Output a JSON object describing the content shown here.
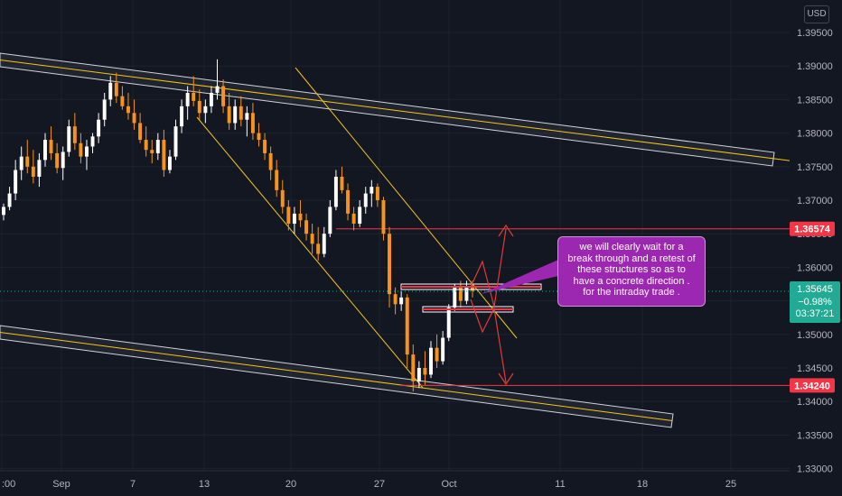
{
  "currency": "USD",
  "chart_data": {
    "type": "candlestick",
    "x_tick_labels": [
      ":00",
      "Sep",
      "7",
      "13",
      "20",
      "27",
      "Oct",
      "11",
      "18",
      "25"
    ],
    "y_tick_labels": [
      "1.39500",
      "1.39000",
      "1.38500",
      "1.38000",
      "1.37500",
      "1.37000",
      "1.36500",
      "1.36000",
      "1.35500",
      "1.35000",
      "1.34500",
      "1.34000",
      "1.33500",
      "1.33000"
    ],
    "ylim": [
      1.33,
      1.3985
    ],
    "colors": {
      "up": "#ffffff",
      "down": "#f7931a",
      "background": "#131722",
      "channel": "#d1d4dc",
      "channel_mid": "#f5c518",
      "level": "#f23645",
      "annotation": "#9c27b0",
      "current": "#22ab94"
    },
    "levels": [
      {
        "price": 1.36574,
        "label": "1.36574"
      },
      {
        "price": 1.3424,
        "label": "1.34240"
      }
    ],
    "current": {
      "price": "1.35645",
      "change": "−0.98%",
      "countdown": "03:37:21",
      "value": 1.35645
    },
    "candles": [
      [
        1.3678,
        1.3695,
        1.367,
        1.369
      ],
      [
        1.369,
        1.372,
        1.3685,
        1.371
      ],
      [
        1.371,
        1.376,
        1.37,
        1.3745
      ],
      [
        1.3745,
        1.378,
        1.373,
        1.3765
      ],
      [
        1.3765,
        1.379,
        1.374,
        1.375
      ],
      [
        1.375,
        1.3775,
        1.3725,
        1.3735
      ],
      [
        1.3735,
        1.377,
        1.372,
        1.376
      ],
      [
        1.376,
        1.38,
        1.375,
        1.379
      ],
      [
        1.379,
        1.381,
        1.376,
        1.377
      ],
      [
        1.377,
        1.3785,
        1.374,
        1.3748
      ],
      [
        1.3748,
        1.378,
        1.373,
        1.3772
      ],
      [
        1.3772,
        1.382,
        1.3765,
        1.381
      ],
      [
        1.381,
        1.383,
        1.3775,
        1.3785
      ],
      [
        1.3785,
        1.38,
        1.3755,
        1.3765
      ],
      [
        1.3765,
        1.379,
        1.3745,
        1.378
      ],
      [
        1.378,
        1.38,
        1.377,
        1.3795
      ],
      [
        1.3795,
        1.383,
        1.3785,
        1.382
      ],
      [
        1.382,
        1.386,
        1.381,
        1.385
      ],
      [
        1.385,
        1.3885,
        1.384,
        1.3875
      ],
      [
        1.3875,
        1.389,
        1.3845,
        1.3855
      ],
      [
        1.3855,
        1.387,
        1.3835,
        1.384
      ],
      [
        1.384,
        1.386,
        1.382,
        1.383
      ],
      [
        1.383,
        1.385,
        1.3805,
        1.3815
      ],
      [
        1.3815,
        1.383,
        1.3785,
        1.379
      ],
      [
        1.379,
        1.381,
        1.3765,
        1.3775
      ],
      [
        1.3775,
        1.379,
        1.3755,
        1.377
      ],
      [
        1.377,
        1.38,
        1.376,
        1.379
      ],
      [
        1.379,
        1.3805,
        1.3735,
        1.3745
      ],
      [
        1.3745,
        1.3775,
        1.374,
        1.3765
      ],
      [
        1.3765,
        1.382,
        1.376,
        1.381
      ],
      [
        1.381,
        1.385,
        1.38,
        1.384
      ],
      [
        1.384,
        1.387,
        1.382,
        1.386
      ],
      [
        1.386,
        1.3885,
        1.384,
        1.3848
      ],
      [
        1.3848,
        1.3865,
        1.382,
        1.383
      ],
      [
        1.383,
        1.385,
        1.3815,
        1.384
      ],
      [
        1.384,
        1.387,
        1.383,
        1.386
      ],
      [
        1.386,
        1.391,
        1.385,
        1.387
      ],
      [
        1.387,
        1.388,
        1.383,
        1.384
      ],
      [
        1.384,
        1.386,
        1.3805,
        1.3815
      ],
      [
        1.3815,
        1.385,
        1.3805,
        1.384
      ],
      [
        1.384,
        1.3855,
        1.381,
        1.382
      ],
      [
        1.382,
        1.384,
        1.3795,
        1.383
      ],
      [
        1.383,
        1.3845,
        1.379,
        1.38
      ],
      [
        1.38,
        1.3815,
        1.378,
        1.379
      ],
      [
        1.379,
        1.38,
        1.376,
        1.377
      ],
      [
        1.377,
        1.378,
        1.373,
        1.3745
      ],
      [
        1.3745,
        1.376,
        1.3705,
        1.3715
      ],
      [
        1.3715,
        1.373,
        1.368,
        1.369
      ],
      [
        1.369,
        1.37,
        1.3655,
        1.3665
      ],
      [
        1.3665,
        1.369,
        1.365,
        1.368
      ],
      [
        1.368,
        1.37,
        1.366,
        1.367
      ],
      [
        1.367,
        1.368,
        1.364,
        1.365
      ],
      [
        1.365,
        1.3665,
        1.362,
        1.3635
      ],
      [
        1.3635,
        1.366,
        1.361,
        1.362
      ],
      [
        1.362,
        1.366,
        1.3615,
        1.365
      ],
      [
        1.365,
        1.37,
        1.3645,
        1.369
      ],
      [
        1.369,
        1.3745,
        1.3685,
        1.3735
      ],
      [
        1.3735,
        1.375,
        1.371,
        1.3715
      ],
      [
        1.3715,
        1.3725,
        1.367,
        1.368
      ],
      [
        1.368,
        1.369,
        1.3655,
        1.3665
      ],
      [
        1.3665,
        1.37,
        1.366,
        1.369
      ],
      [
        1.369,
        1.372,
        1.368,
        1.371
      ],
      [
        1.371,
        1.373,
        1.369,
        1.372
      ],
      [
        1.372,
        1.3725,
        1.369,
        1.37
      ],
      [
        1.37,
        1.3705,
        1.364,
        1.365
      ],
      [
        1.365,
        1.366,
        1.354,
        1.356
      ],
      [
        1.356,
        1.357,
        1.353,
        1.3545
      ],
      [
        1.3545,
        1.3565,
        1.3535,
        1.3555
      ],
      [
        1.3555,
        1.356,
        1.345,
        1.347
      ],
      [
        1.347,
        1.3485,
        1.3415,
        1.343
      ],
      [
        1.343,
        1.346,
        1.342,
        1.345
      ],
      [
        1.345,
        1.3475,
        1.3425,
        1.344
      ],
      [
        1.344,
        1.349,
        1.3435,
        1.348
      ],
      [
        1.348,
        1.35,
        1.345,
        1.346
      ],
      [
        1.346,
        1.3505,
        1.3455,
        1.3495
      ],
      [
        1.3495,
        1.3545,
        1.349,
        1.354
      ],
      [
        1.354,
        1.3575,
        1.3535,
        1.357
      ],
      [
        1.357,
        1.358,
        1.354,
        1.355
      ],
      [
        1.355,
        1.358,
        1.3545,
        1.357
      ],
      [
        1.357,
        1.358,
        1.3555,
        1.3565
      ]
    ]
  },
  "annotation": {
    "lines": [
      "we will clearly wait for a",
      "break through and a retest of",
      "these structures so as to",
      "have a concrete direction .",
      "for the intraday trade ."
    ]
  }
}
